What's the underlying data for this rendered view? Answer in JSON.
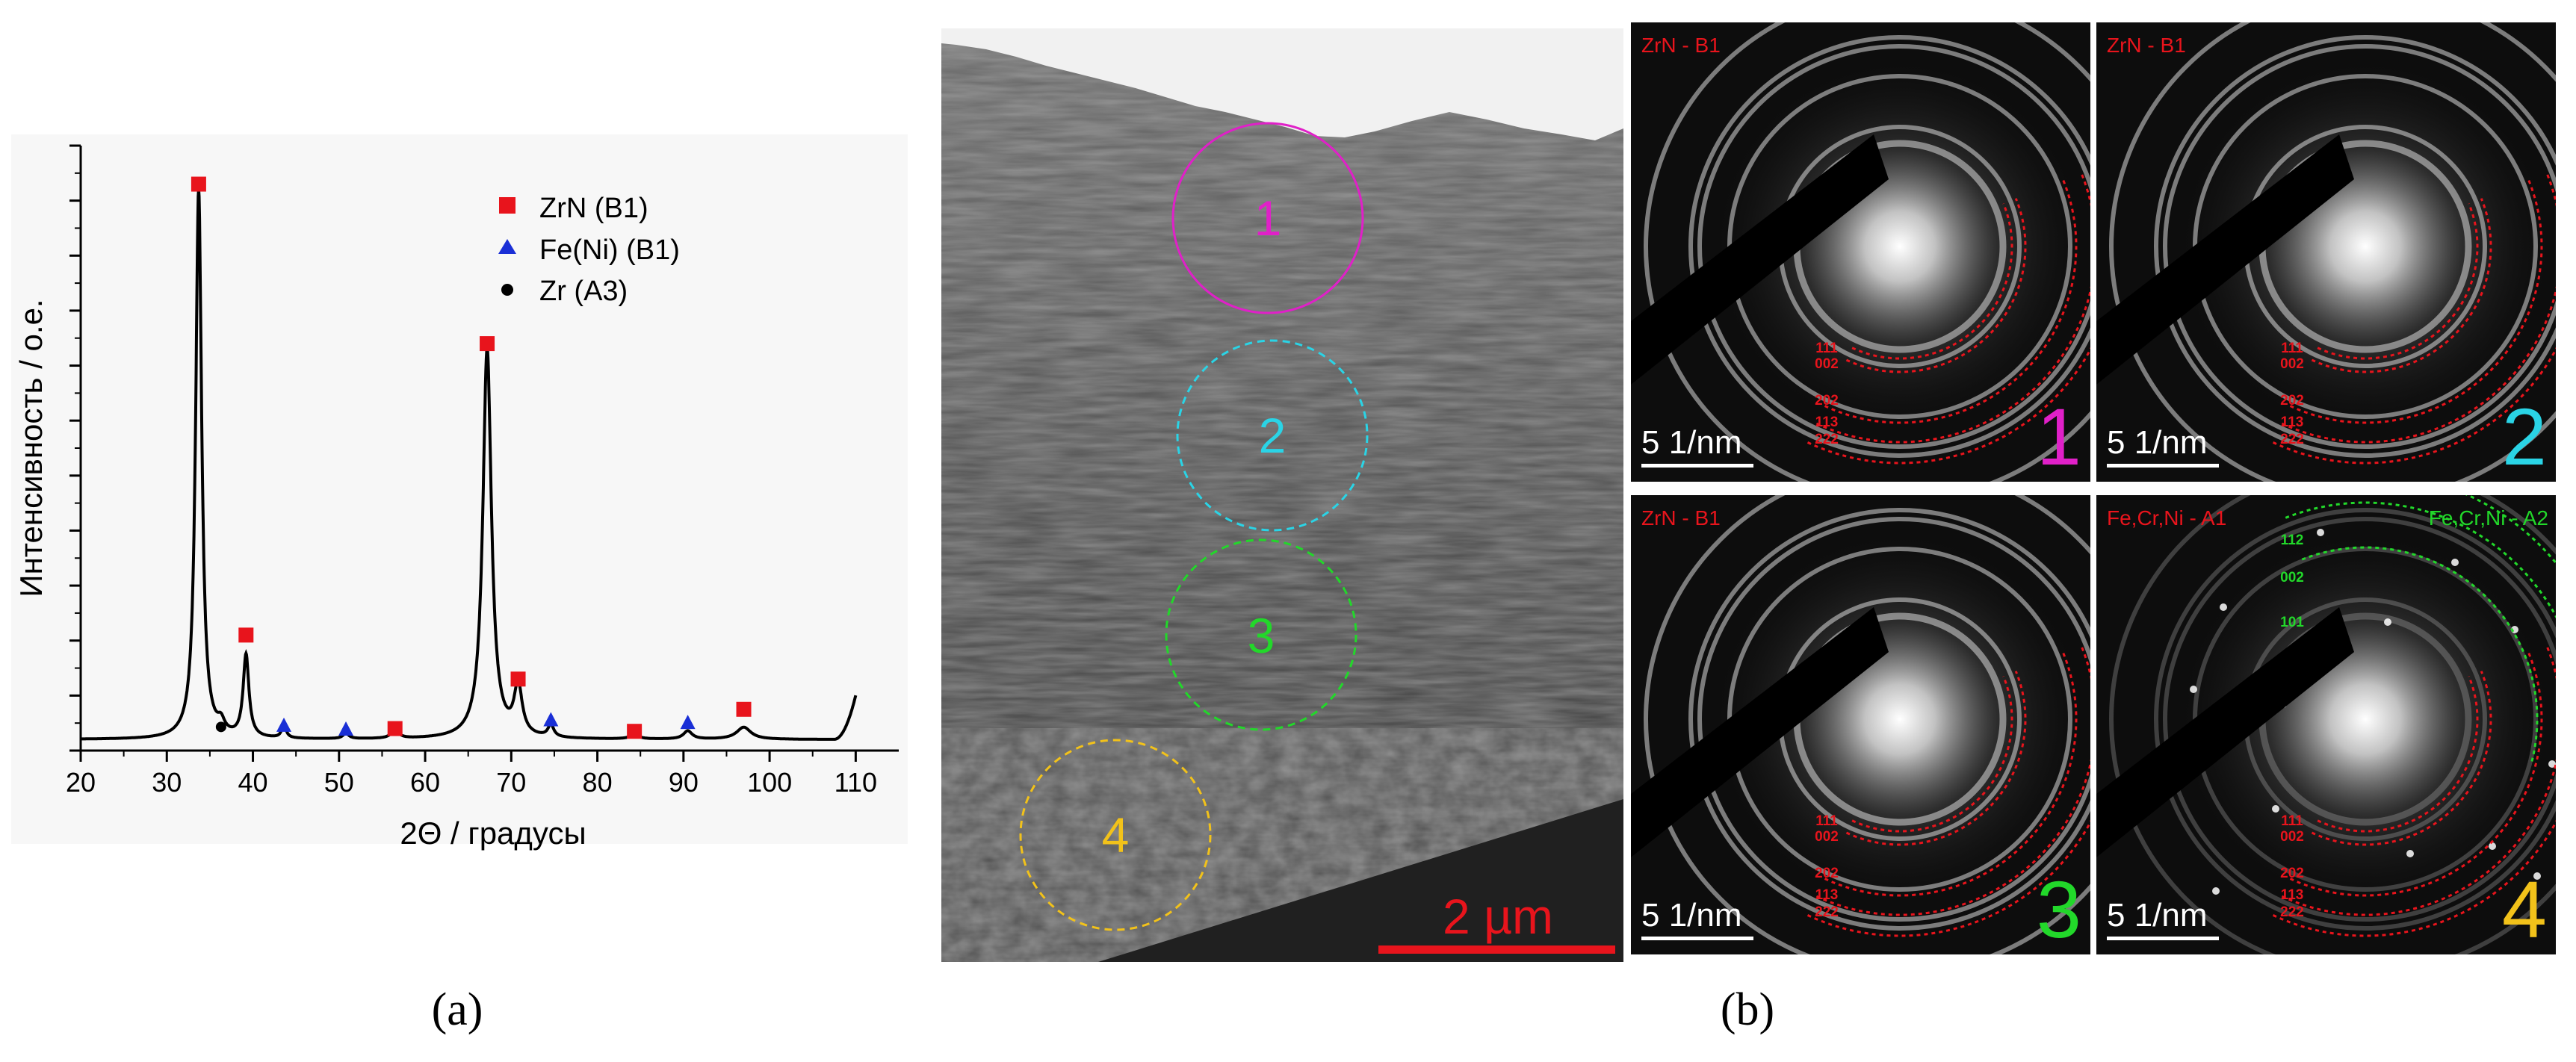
{
  "panel_a": {
    "label": "(a)",
    "xlabel": "2Θ / градусы",
    "ylabel": "Интенсивность / о.е.",
    "legend": [
      {
        "name": "ZrN (B1)",
        "color": "#e8141c",
        "marker": "square"
      },
      {
        "name": "Fe(Ni) (B1)",
        "color": "#1a2fd6",
        "marker": "triangle"
      },
      {
        "name": "Zr (A3)",
        "color": "#000000",
        "marker": "circle"
      }
    ]
  },
  "chart_data": {
    "type": "line",
    "title": "",
    "xlabel": "2Θ / градусы",
    "ylabel": "Интенсивность / о.е.",
    "xlim": [
      20,
      115
    ],
    "xticks": [
      20,
      30,
      40,
      50,
      60,
      70,
      80,
      90,
      100,
      110
    ],
    "ylim": [
      0,
      110
    ],
    "yticks_labeled": false,
    "baseline": 2,
    "peaks": [
      {
        "x": 33.7,
        "h": 100,
        "w": 0.42
      },
      {
        "x": 36.3,
        "h": 2,
        "w": 0.5
      },
      {
        "x": 39.2,
        "h": 15,
        "w": 0.4
      },
      {
        "x": 43.6,
        "h": 2.5,
        "w": 0.3
      },
      {
        "x": 50.8,
        "h": 1.0,
        "w": 0.4
      },
      {
        "x": 56.5,
        "h": 1.6,
        "w": 0.5
      },
      {
        "x": 67.2,
        "h": 71,
        "w": 0.6
      },
      {
        "x": 70.8,
        "h": 9,
        "w": 0.55
      },
      {
        "x": 74.6,
        "h": 2.2,
        "w": 0.4
      },
      {
        "x": 84.3,
        "h": 0.8,
        "w": 0.6
      },
      {
        "x": 90.5,
        "h": 1.5,
        "w": 0.6
      },
      {
        "x": 97.0,
        "h": 2.2,
        "w": 1.0
      }
    ],
    "rise": {
      "x0": 107.5,
      "x1": 110.0,
      "h": 8
    },
    "series": [
      {
        "name": "ZrN (B1)",
        "marker": "square",
        "color": "#e8141c",
        "points": [
          [
            33.7,
            103
          ],
          [
            39.2,
            21
          ],
          [
            56.5,
            4
          ],
          [
            67.2,
            74
          ],
          [
            70.8,
            13
          ],
          [
            84.3,
            3.5
          ],
          [
            97.0,
            7.5
          ]
        ]
      },
      {
        "name": "Fe(Ni) (B1)",
        "marker": "triangle",
        "color": "#1a2fd6",
        "points": [
          [
            43.6,
            4.5
          ],
          [
            50.8,
            3.8
          ],
          [
            74.6,
            5.5
          ],
          [
            90.5,
            5
          ]
        ]
      },
      {
        "name": "Zr (A3)",
        "marker": "circle",
        "color": "#000000",
        "points": [
          [
            36.3,
            4.3
          ]
        ]
      }
    ]
  },
  "panel_b": {
    "label": "(b)",
    "tem": {
      "scale_text": "2 µm",
      "regions": [
        {
          "label": "1",
          "color": "#e020c8",
          "dashed": false
        },
        {
          "label": "2",
          "color": "#2ad4e6",
          "dashed": true
        },
        {
          "label": "3",
          "color": "#22d82a",
          "dashed": true
        },
        {
          "label": "4",
          "color": "#f2c21a",
          "dashed": true
        }
      ]
    },
    "saed": [
      {
        "number": "1",
        "number_color": "#e020c8",
        "phase": "ZrN - B1",
        "phase_color": "#e8141c",
        "scale_text": "5 1/nm",
        "rings": [
          "111",
          "002",
          "202",
          "113",
          "222"
        ],
        "ring_color": "#e8141c"
      },
      {
        "number": "2",
        "number_color": "#2ad4e6",
        "phase": "ZrN - B1",
        "phase_color": "#e8141c",
        "scale_text": "5 1/nm",
        "rings": [
          "111",
          "002",
          "202",
          "113",
          "222"
        ],
        "ring_color": "#e8141c"
      },
      {
        "number": "3",
        "number_color": "#22d82a",
        "phase": "ZrN - B1",
        "phase_color": "#e8141c",
        "scale_text": "5 1/nm",
        "rings": [
          "111",
          "002",
          "202",
          "113",
          "222"
        ],
        "ring_color": "#e8141c"
      },
      {
        "number": "4",
        "number_color": "#f2c21a",
        "phase": "Fe,Cr,Ni - A1",
        "phase_color": "#e8141c",
        "phase2": "Fe,Cr,Ni - A2",
        "phase2_color": "#22d82a",
        "scale_text": "5 1/nm",
        "rings": [
          "111",
          "002",
          "202",
          "113",
          "222"
        ],
        "ring_color": "#e8141c",
        "rings2": [
          "112",
          "002",
          "101"
        ],
        "ring2_color": "#22d82a"
      }
    ]
  }
}
